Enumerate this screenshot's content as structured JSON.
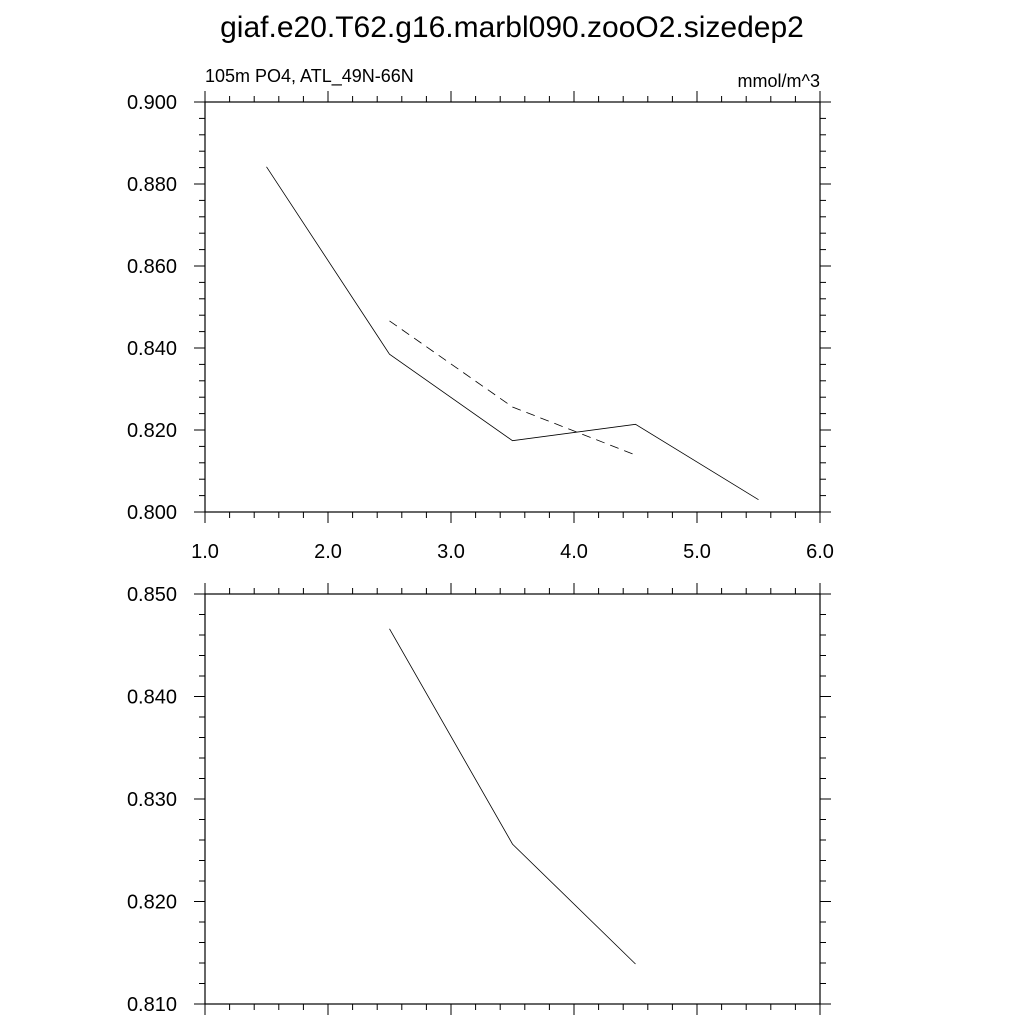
{
  "title": "giaf.e20.T62.g16.marbl090.zooO2.sizedep2",
  "chart_data": [
    {
      "type": "line",
      "left_string": "105m PO4, ATL_49N-66N",
      "right_string": "mmol/m^3",
      "xlim": [
        1.0,
        6.0
      ],
      "ylim": [
        0.8,
        0.9
      ],
      "x_ticks": [
        "1.0",
        "2.0",
        "3.0",
        "4.0",
        "5.0",
        "6.0"
      ],
      "y_ticks": [
        "0.800",
        "0.820",
        "0.840",
        "0.860",
        "0.880",
        "0.900"
      ],
      "grid": false,
      "series": [
        {
          "style": "solid",
          "x": [
            1.5,
            2.5,
            3.5,
            4.5,
            5.5
          ],
          "y": [
            0.8842,
            0.8385,
            0.8174,
            0.8214,
            0.803
          ]
        },
        {
          "style": "dashed",
          "x": [
            2.5,
            3.5,
            4.5
          ],
          "y": [
            0.8466,
            0.8256,
            0.8139
          ]
        }
      ]
    },
    {
      "type": "line",
      "xlim": [
        1.0,
        6.0
      ],
      "ylim": [
        0.81,
        0.85
      ],
      "y_ticks": [
        "0.810",
        "0.820",
        "0.830",
        "0.840",
        "0.850"
      ],
      "grid": false,
      "series": [
        {
          "style": "solid",
          "x": [
            2.5,
            3.5,
            4.5
          ],
          "y": [
            0.8466,
            0.8256,
            0.8139
          ]
        }
      ]
    }
  ]
}
